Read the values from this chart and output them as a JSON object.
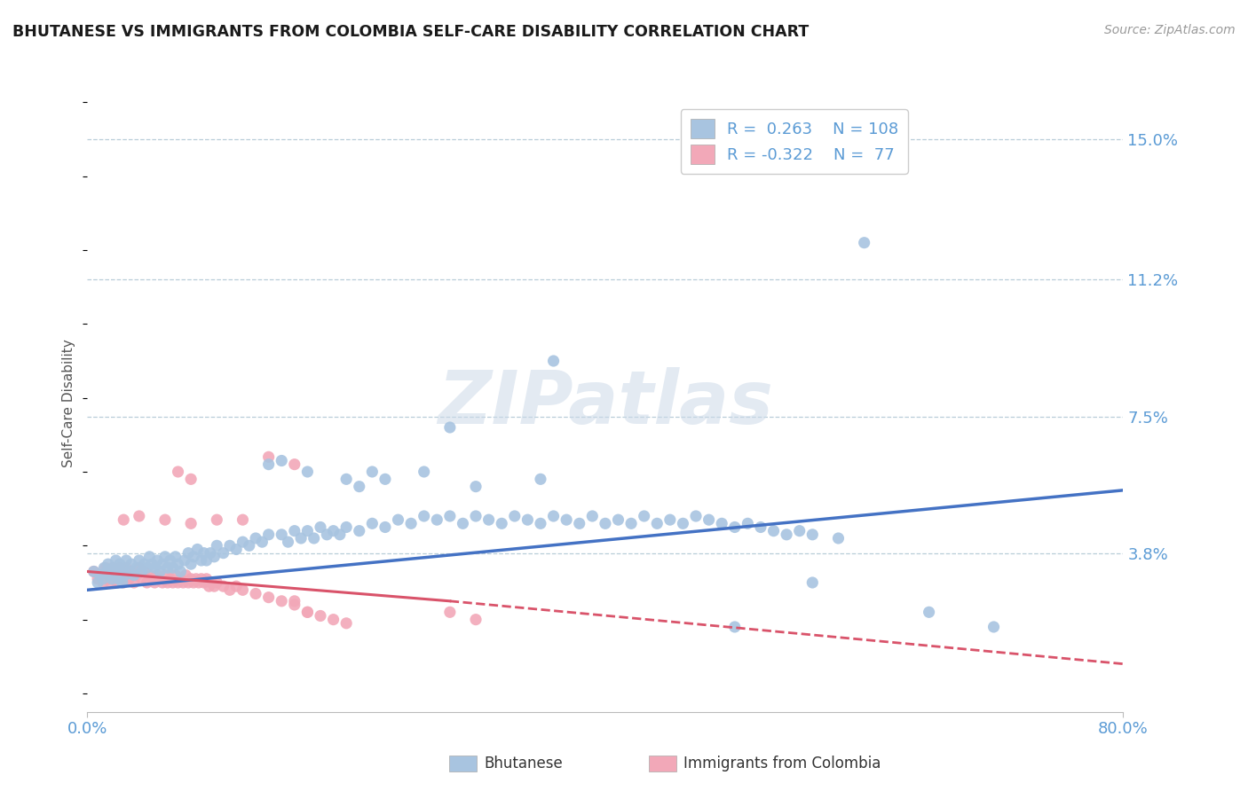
{
  "title": "BHUTANESE VS IMMIGRANTS FROM COLOMBIA SELF-CARE DISABILITY CORRELATION CHART",
  "source": "Source: ZipAtlas.com",
  "ylabel": "Self-Care Disability",
  "ytick_labels": [
    "15.0%",
    "11.2%",
    "7.5%",
    "3.8%"
  ],
  "ytick_values": [
    0.15,
    0.112,
    0.075,
    0.038
  ],
  "xmin": 0.0,
  "xmax": 0.8,
  "ymin": -0.005,
  "ymax": 0.162,
  "blue_color": "#a8c4e0",
  "pink_color": "#f2a8b8",
  "line_blue": "#4472c4",
  "line_pink": "#d9536a",
  "title_color": "#1a1a1a",
  "axis_label_color": "#5b9bd5",
  "watermark_color": "#ccd9e8",
  "grid_color": "#b8cdd8",
  "background_color": "#ffffff",
  "blue_scatter": [
    [
      0.005,
      0.033
    ],
    [
      0.008,
      0.03
    ],
    [
      0.01,
      0.032
    ],
    [
      0.012,
      0.031
    ],
    [
      0.013,
      0.034
    ],
    [
      0.015,
      0.033
    ],
    [
      0.016,
      0.035
    ],
    [
      0.018,
      0.032
    ],
    [
      0.019,
      0.031
    ],
    [
      0.02,
      0.034
    ],
    [
      0.021,
      0.033
    ],
    [
      0.022,
      0.036
    ],
    [
      0.023,
      0.032
    ],
    [
      0.024,
      0.031
    ],
    [
      0.025,
      0.035
    ],
    [
      0.026,
      0.033
    ],
    [
      0.027,
      0.03
    ],
    [
      0.028,
      0.034
    ],
    [
      0.029,
      0.032
    ],
    [
      0.03,
      0.036
    ],
    [
      0.032,
      0.033
    ],
    [
      0.034,
      0.035
    ],
    [
      0.036,
      0.032
    ],
    [
      0.038,
      0.034
    ],
    [
      0.04,
      0.036
    ],
    [
      0.042,
      0.033
    ],
    [
      0.044,
      0.035
    ],
    [
      0.046,
      0.034
    ],
    [
      0.048,
      0.037
    ],
    [
      0.05,
      0.035
    ],
    [
      0.052,
      0.034
    ],
    [
      0.054,
      0.036
    ],
    [
      0.056,
      0.033
    ],
    [
      0.058,
      0.035
    ],
    [
      0.06,
      0.037
    ],
    [
      0.062,
      0.034
    ],
    [
      0.064,
      0.036
    ],
    [
      0.066,
      0.034
    ],
    [
      0.068,
      0.037
    ],
    [
      0.07,
      0.035
    ],
    [
      0.072,
      0.033
    ],
    [
      0.075,
      0.036
    ],
    [
      0.078,
      0.038
    ],
    [
      0.08,
      0.035
    ],
    [
      0.082,
      0.037
    ],
    [
      0.085,
      0.039
    ],
    [
      0.088,
      0.036
    ],
    [
      0.09,
      0.038
    ],
    [
      0.092,
      0.036
    ],
    [
      0.095,
      0.038
    ],
    [
      0.098,
      0.037
    ],
    [
      0.1,
      0.04
    ],
    [
      0.105,
      0.038
    ],
    [
      0.11,
      0.04
    ],
    [
      0.115,
      0.039
    ],
    [
      0.12,
      0.041
    ],
    [
      0.125,
      0.04
    ],
    [
      0.13,
      0.042
    ],
    [
      0.135,
      0.041
    ],
    [
      0.14,
      0.043
    ],
    [
      0.15,
      0.043
    ],
    [
      0.155,
      0.041
    ],
    [
      0.16,
      0.044
    ],
    [
      0.165,
      0.042
    ],
    [
      0.17,
      0.044
    ],
    [
      0.175,
      0.042
    ],
    [
      0.18,
      0.045
    ],
    [
      0.185,
      0.043
    ],
    [
      0.19,
      0.044
    ],
    [
      0.195,
      0.043
    ],
    [
      0.2,
      0.045
    ],
    [
      0.21,
      0.044
    ],
    [
      0.22,
      0.046
    ],
    [
      0.23,
      0.045
    ],
    [
      0.24,
      0.047
    ],
    [
      0.25,
      0.046
    ],
    [
      0.26,
      0.048
    ],
    [
      0.27,
      0.047
    ],
    [
      0.28,
      0.048
    ],
    [
      0.29,
      0.046
    ],
    [
      0.3,
      0.048
    ],
    [
      0.31,
      0.047
    ],
    [
      0.32,
      0.046
    ],
    [
      0.33,
      0.048
    ],
    [
      0.34,
      0.047
    ],
    [
      0.35,
      0.046
    ],
    [
      0.36,
      0.048
    ],
    [
      0.37,
      0.047
    ],
    [
      0.38,
      0.046
    ],
    [
      0.39,
      0.048
    ],
    [
      0.4,
      0.046
    ],
    [
      0.41,
      0.047
    ],
    [
      0.42,
      0.046
    ],
    [
      0.43,
      0.048
    ],
    [
      0.44,
      0.046
    ],
    [
      0.45,
      0.047
    ],
    [
      0.46,
      0.046
    ],
    [
      0.47,
      0.048
    ],
    [
      0.48,
      0.047
    ],
    [
      0.49,
      0.046
    ],
    [
      0.5,
      0.045
    ],
    [
      0.51,
      0.046
    ],
    [
      0.52,
      0.045
    ],
    [
      0.53,
      0.044
    ],
    [
      0.54,
      0.043
    ],
    [
      0.55,
      0.044
    ],
    [
      0.56,
      0.043
    ],
    [
      0.58,
      0.042
    ],
    [
      0.14,
      0.062
    ],
    [
      0.17,
      0.06
    ],
    [
      0.22,
      0.06
    ],
    [
      0.23,
      0.058
    ],
    [
      0.2,
      0.058
    ],
    [
      0.21,
      0.056
    ],
    [
      0.26,
      0.06
    ],
    [
      0.3,
      0.056
    ],
    [
      0.35,
      0.058
    ],
    [
      0.36,
      0.09
    ],
    [
      0.28,
      0.072
    ],
    [
      0.6,
      0.122
    ],
    [
      0.65,
      0.022
    ],
    [
      0.7,
      0.018
    ],
    [
      0.5,
      0.018
    ],
    [
      0.56,
      0.03
    ],
    [
      0.15,
      0.063
    ]
  ],
  "pink_scatter": [
    [
      0.005,
      0.033
    ],
    [
      0.008,
      0.031
    ],
    [
      0.01,
      0.032
    ],
    [
      0.012,
      0.03
    ],
    [
      0.014,
      0.034
    ],
    [
      0.015,
      0.032
    ],
    [
      0.016,
      0.031
    ],
    [
      0.017,
      0.033
    ],
    [
      0.018,
      0.03
    ],
    [
      0.019,
      0.032
    ],
    [
      0.02,
      0.034
    ],
    [
      0.021,
      0.031
    ],
    [
      0.022,
      0.033
    ],
    [
      0.023,
      0.03
    ],
    [
      0.024,
      0.032
    ],
    [
      0.025,
      0.034
    ],
    [
      0.026,
      0.031
    ],
    [
      0.027,
      0.033
    ],
    [
      0.028,
      0.03
    ],
    [
      0.029,
      0.032
    ],
    [
      0.03,
      0.034
    ],
    [
      0.032,
      0.031
    ],
    [
      0.034,
      0.033
    ],
    [
      0.036,
      0.03
    ],
    [
      0.038,
      0.032
    ],
    [
      0.04,
      0.034
    ],
    [
      0.042,
      0.031
    ],
    [
      0.044,
      0.033
    ],
    [
      0.046,
      0.03
    ],
    [
      0.048,
      0.032
    ],
    [
      0.05,
      0.031
    ],
    [
      0.052,
      0.03
    ],
    [
      0.054,
      0.032
    ],
    [
      0.056,
      0.031
    ],
    [
      0.058,
      0.03
    ],
    [
      0.06,
      0.032
    ],
    [
      0.062,
      0.03
    ],
    [
      0.064,
      0.031
    ],
    [
      0.066,
      0.03
    ],
    [
      0.068,
      0.032
    ],
    [
      0.07,
      0.03
    ],
    [
      0.072,
      0.031
    ],
    [
      0.074,
      0.03
    ],
    [
      0.076,
      0.032
    ],
    [
      0.078,
      0.03
    ],
    [
      0.08,
      0.031
    ],
    [
      0.082,
      0.03
    ],
    [
      0.084,
      0.031
    ],
    [
      0.086,
      0.03
    ],
    [
      0.088,
      0.031
    ],
    [
      0.09,
      0.03
    ],
    [
      0.092,
      0.031
    ],
    [
      0.094,
      0.029
    ],
    [
      0.096,
      0.03
    ],
    [
      0.098,
      0.029
    ],
    [
      0.1,
      0.03
    ],
    [
      0.105,
      0.029
    ],
    [
      0.11,
      0.028
    ],
    [
      0.115,
      0.029
    ],
    [
      0.12,
      0.028
    ],
    [
      0.13,
      0.027
    ],
    [
      0.14,
      0.026
    ],
    [
      0.15,
      0.025
    ],
    [
      0.16,
      0.024
    ],
    [
      0.17,
      0.022
    ],
    [
      0.18,
      0.021
    ],
    [
      0.19,
      0.02
    ],
    [
      0.2,
      0.019
    ],
    [
      0.028,
      0.047
    ],
    [
      0.04,
      0.048
    ],
    [
      0.06,
      0.047
    ],
    [
      0.08,
      0.046
    ],
    [
      0.1,
      0.047
    ],
    [
      0.12,
      0.047
    ],
    [
      0.07,
      0.06
    ],
    [
      0.08,
      0.058
    ],
    [
      0.14,
      0.064
    ],
    [
      0.16,
      0.062
    ],
    [
      0.28,
      0.022
    ],
    [
      0.3,
      0.02
    ],
    [
      0.16,
      0.025
    ],
    [
      0.17,
      0.022
    ]
  ],
  "blue_line": [
    [
      0.0,
      0.028
    ],
    [
      0.8,
      0.055
    ]
  ],
  "pink_solid_line": [
    [
      0.0,
      0.033
    ],
    [
      0.28,
      0.025
    ]
  ],
  "pink_dashed_line": [
    [
      0.28,
      0.025
    ],
    [
      0.8,
      0.008
    ]
  ]
}
